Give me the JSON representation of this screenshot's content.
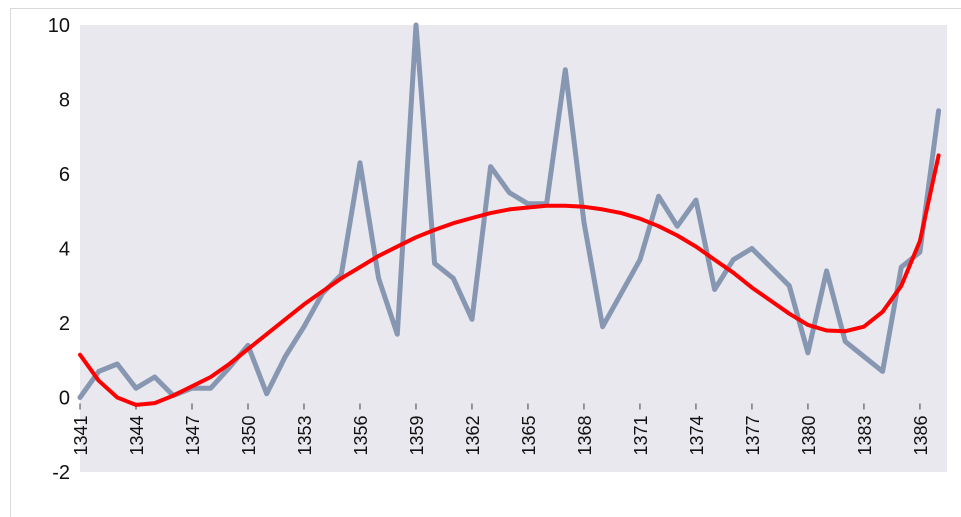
{
  "chart_data": {
    "type": "line",
    "title": "",
    "xlabel": "",
    "ylabel": "",
    "x": [
      1341,
      1342,
      1343,
      1344,
      1345,
      1346,
      1347,
      1348,
      1349,
      1350,
      1351,
      1352,
      1353,
      1354,
      1355,
      1356,
      1357,
      1358,
      1359,
      1360,
      1361,
      1362,
      1363,
      1364,
      1365,
      1366,
      1367,
      1368,
      1369,
      1370,
      1371,
      1372,
      1373,
      1374,
      1375,
      1376,
      1377,
      1378,
      1379,
      1380,
      1381,
      1382,
      1383,
      1384,
      1385,
      1386,
      1387
    ],
    "x_tick_labels": [
      "1341",
      "1344",
      "1347",
      "1350",
      "1353",
      "1356",
      "1359",
      "1362",
      "1365",
      "1368",
      "1371",
      "1374",
      "1377",
      "1380",
      "1383",
      "1386"
    ],
    "y_tick_labels": [
      "10",
      "8",
      "6",
      "4",
      "2",
      "0",
      "-2"
    ],
    "ylim": [
      -2,
      10
    ],
    "grid": false,
    "plot_background": "#e8e8ee",
    "series": [
      {
        "color": "#8797b2",
        "values": [
          0.0,
          0.7,
          0.9,
          0.25,
          0.55,
          0.05,
          0.25,
          0.25,
          0.8,
          1.4,
          0.1,
          1.1,
          1.9,
          2.8,
          3.3,
          6.3,
          3.2,
          1.7,
          10.0,
          3.6,
          3.2,
          2.1,
          6.2,
          5.5,
          5.2,
          5.2,
          8.8,
          4.7,
          1.9,
          2.8,
          3.7,
          5.4,
          4.6,
          5.3,
          2.9,
          3.7,
          4.0,
          3.5,
          3.0,
          1.2,
          3.4,
          1.5,
          1.1,
          0.7,
          3.5,
          3.9,
          7.7
        ]
      },
      {
        "color": "#ff0000",
        "values": [
          1.15,
          0.45,
          0.0,
          -0.2,
          -0.15,
          0.05,
          0.3,
          0.55,
          0.9,
          1.3,
          1.7,
          2.1,
          2.5,
          2.85,
          3.2,
          3.5,
          3.8,
          4.05,
          4.3,
          4.5,
          4.68,
          4.82,
          4.95,
          5.05,
          5.1,
          5.15,
          5.15,
          5.12,
          5.05,
          4.95,
          4.8,
          4.6,
          4.35,
          4.05,
          3.7,
          3.35,
          2.95,
          2.6,
          2.25,
          1.95,
          1.8,
          1.78,
          1.9,
          2.3,
          3.0,
          4.2,
          6.5
        ]
      }
    ]
  }
}
